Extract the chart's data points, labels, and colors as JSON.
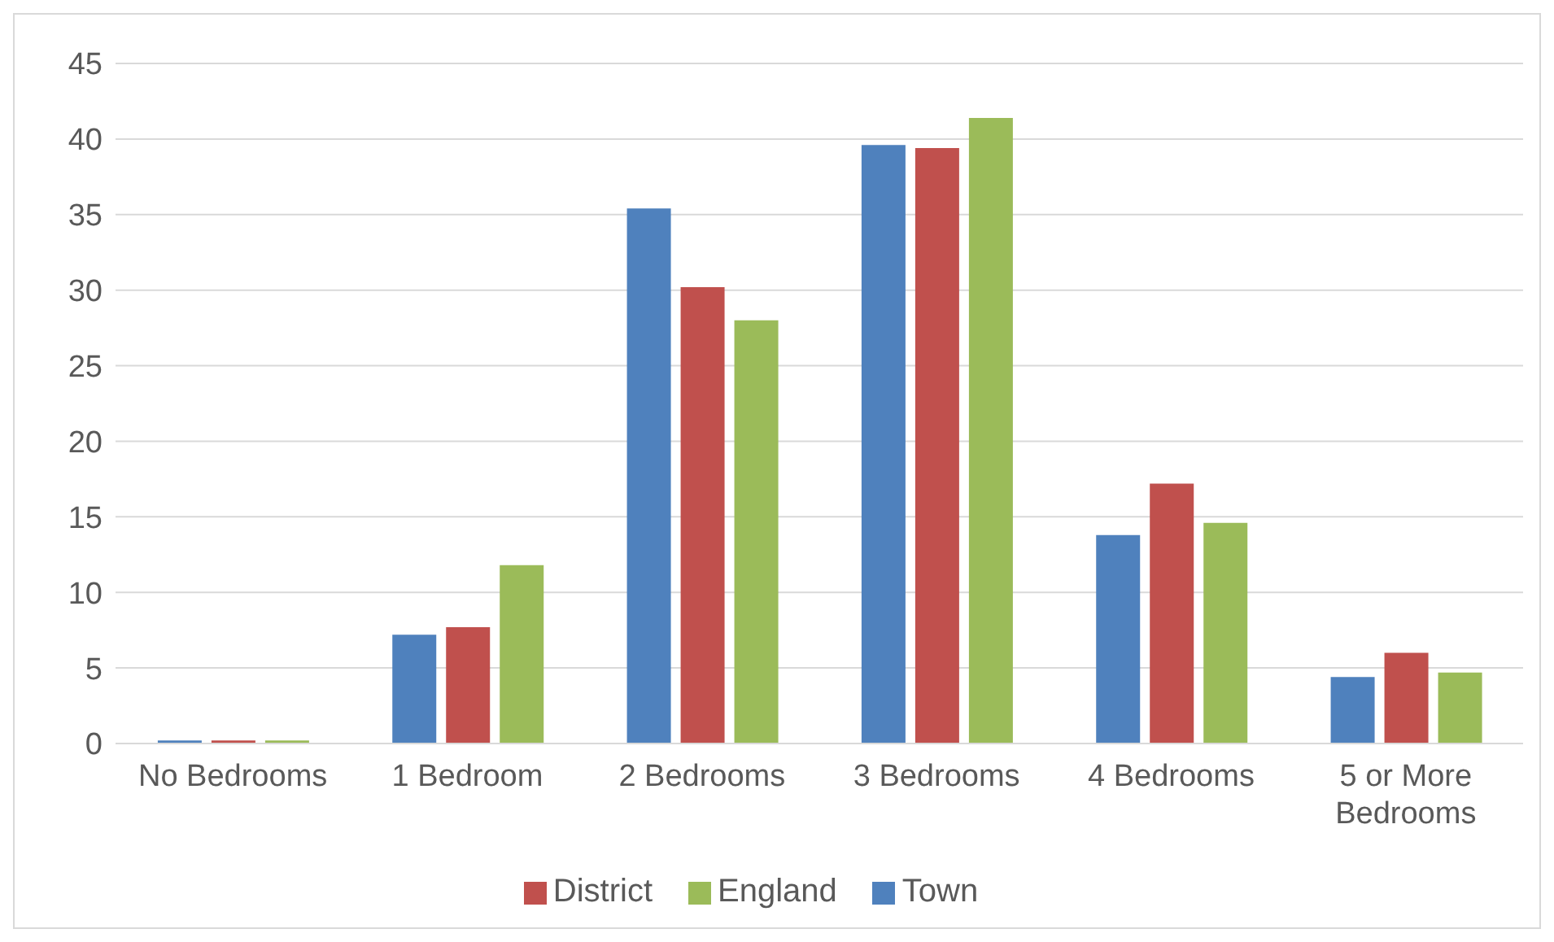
{
  "chart_data": {
    "type": "bar",
    "categories": [
      "No Bedrooms",
      "1 Bedroom",
      "2 Bedrooms",
      "3 Bedrooms",
      "4 Bedrooms",
      "5 or More Bedrooms"
    ],
    "series": [
      {
        "name": "Town",
        "color": "#4f81bd",
        "values": [
          0.2,
          7.2,
          35.4,
          39.6,
          13.8,
          4.4
        ]
      },
      {
        "name": "District",
        "color": "#c0504d",
        "values": [
          0.2,
          7.7,
          30.2,
          39.4,
          17.2,
          6.0
        ]
      },
      {
        "name": "England",
        "color": "#9bbb59",
        "values": [
          0.2,
          11.8,
          28.0,
          41.4,
          14.6,
          4.7
        ]
      }
    ],
    "ylim": [
      0,
      45
    ],
    "yticks": [
      0,
      5,
      10,
      15,
      20,
      25,
      30,
      35,
      40,
      45
    ],
    "grid": "y",
    "legend": "bottom"
  }
}
